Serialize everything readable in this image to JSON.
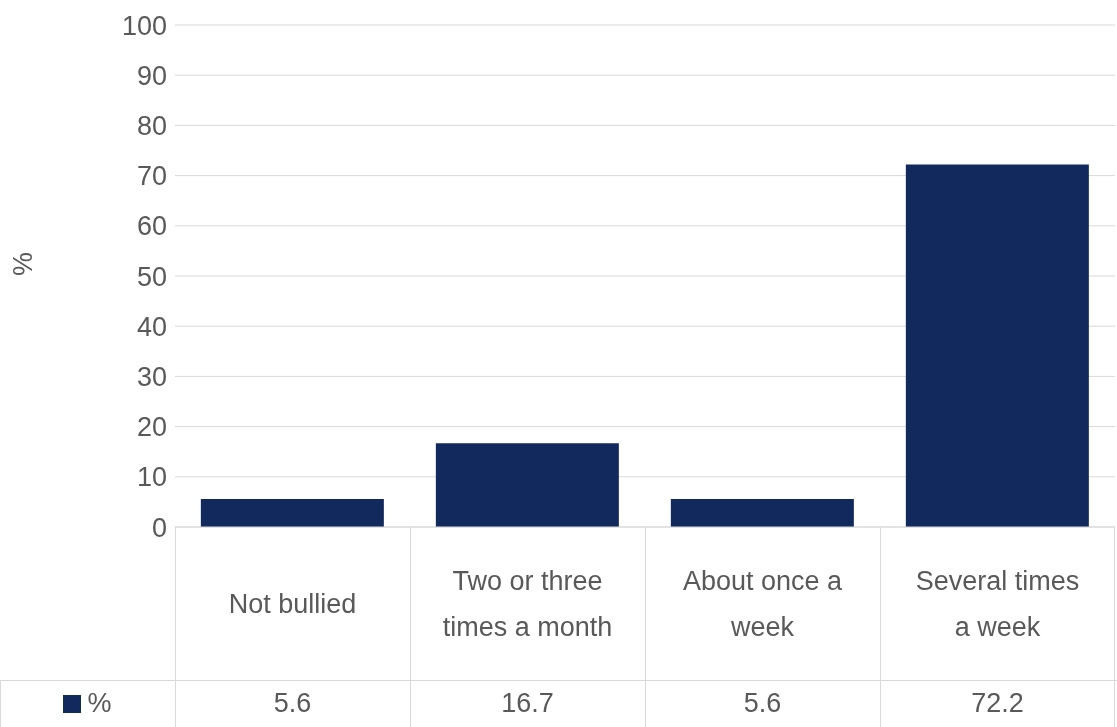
{
  "chart_data": {
    "type": "bar",
    "ylabel": "%",
    "categories": [
      "Not bullied",
      "Two or three times a month",
      "About once a week",
      "Several times a week"
    ],
    "series": [
      {
        "name": "%",
        "color": "#12295e",
        "values": [
          5.6,
          16.7,
          5.6,
          72.2
        ]
      }
    ],
    "ylim": [
      0,
      100
    ],
    "yticks": [
      0,
      10,
      20,
      30,
      40,
      50,
      60,
      70,
      80,
      90,
      100
    ],
    "grid": "y",
    "legend": "bottom",
    "data_labels": true
  }
}
